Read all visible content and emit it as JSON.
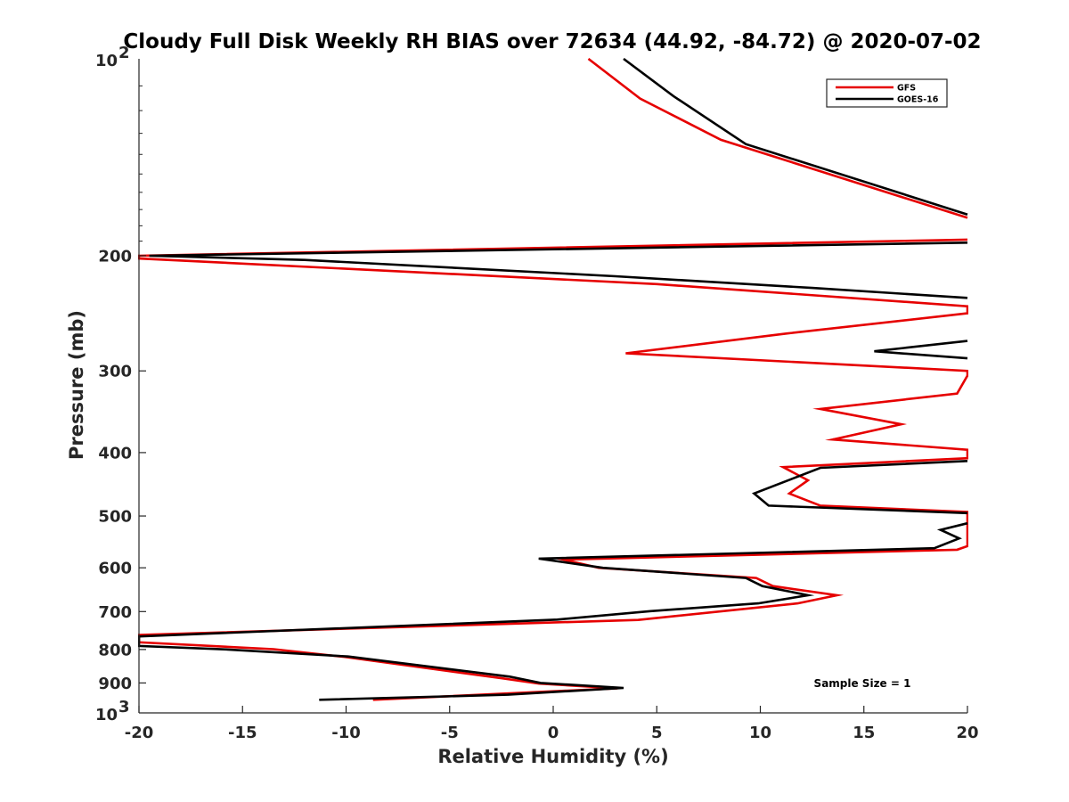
{
  "chart_data": {
    "type": "line",
    "title": "Cloudy Full Disk Weekly RH BIAS over 72634 (44.92, -84.72) @ 2020-07-02",
    "xlabel": "Relative Humidity (%)",
    "ylabel": "Pressure (mb)",
    "xlim": [
      -20,
      20
    ],
    "ylim": [
      100,
      1000
    ],
    "y_scale": "log",
    "y_reversed": true,
    "grid": false,
    "legend_position": "top-right",
    "annotation": "Sample Size = 1",
    "x_ticks": [
      {
        "value": -20,
        "label": "-20"
      },
      {
        "value": -15,
        "label": "-15"
      },
      {
        "value": -10,
        "label": "-10"
      },
      {
        "value": -5,
        "label": "-5"
      },
      {
        "value": 0,
        "label": "0"
      },
      {
        "value": 5,
        "label": "5"
      },
      {
        "value": 10,
        "label": "10"
      },
      {
        "value": 15,
        "label": "15"
      },
      {
        "value": 20,
        "label": "20"
      }
    ],
    "y_ticks": [
      {
        "value": 200,
        "label": "200"
      },
      {
        "value": 300,
        "label": "300"
      },
      {
        "value": 400,
        "label": "400"
      },
      {
        "value": 500,
        "label": "500"
      },
      {
        "value": 600,
        "label": "600"
      },
      {
        "value": 700,
        "label": "700"
      },
      {
        "value": 800,
        "label": "800"
      },
      {
        "value": 900,
        "label": "900"
      }
    ],
    "y_top_label": {
      "base": "10",
      "exp": "2"
    },
    "y_bottom_label": {
      "base": "10",
      "exp": "3"
    },
    "series": [
      {
        "name": "GFS",
        "color": "#e60000",
        "segments": [
          [
            [
              1.7,
              100
            ],
            [
              4.2,
              115
            ],
            [
              8.1,
              133
            ],
            [
              20,
              175
            ]
          ],
          [
            [
              20,
              189
            ],
            [
              -20,
              200
            ],
            [
              -20,
              202
            ],
            [
              5,
              221
            ],
            [
              20,
              239
            ],
            [
              20,
              245
            ],
            [
              11.3,
              263
            ],
            [
              3.5,
              282
            ],
            [
              20,
              300
            ],
            [
              20,
              305
            ],
            [
              19.5,
              325
            ],
            [
              12.9,
              343
            ],
            [
              16.8,
              362
            ],
            [
              13.5,
              382
            ],
            [
              20,
              396
            ],
            [
              20,
              408
            ],
            [
              11.1,
              421
            ],
            [
              12.3,
              441
            ],
            [
              11.4,
              462
            ],
            [
              12.9,
              482
            ],
            [
              20,
              493
            ],
            [
              20,
              556
            ],
            [
              19.5,
              563
            ],
            [
              0.5,
              583
            ],
            [
              2.2,
              600
            ],
            [
              9.8,
              622
            ],
            [
              10.6,
              640
            ],
            [
              13.7,
              661
            ],
            [
              11.8,
              680
            ],
            [
              4.1,
              721
            ],
            [
              -20,
              760
            ],
            [
              -20,
              780
            ],
            [
              -13.5,
              799
            ],
            [
              -10.1,
              821
            ],
            [
              -2.5,
              885
            ],
            [
              -0.7,
              902
            ],
            [
              3.1,
              917
            ],
            [
              -8.7,
              955
            ]
          ]
        ]
      },
      {
        "name": "GOES-16",
        "color": "#000000",
        "segments": [
          [
            [
              3.4,
              100
            ],
            [
              5.8,
              114
            ],
            [
              9.3,
              135
            ],
            [
              20,
              173
            ]
          ],
          [
            [
              20,
              191
            ],
            [
              -19.5,
              200
            ],
            [
              -12,
              203
            ],
            [
              3,
              215
            ],
            [
              12.5,
              224
            ],
            [
              20,
              232
            ]
          ],
          [
            [
              20,
              270
            ],
            [
              15.5,
              280
            ],
            [
              20,
              287
            ]
          ],
          [
            [
              20,
              412
            ],
            [
              12.9,
              422
            ],
            [
              9.7,
              462
            ],
            [
              10.4,
              482
            ],
            [
              20,
              495
            ]
          ],
          [
            [
              20,
              513
            ],
            [
              18.7,
              525
            ],
            [
              19.6,
              541
            ],
            [
              18.4,
              560
            ],
            [
              -0.7,
              581
            ],
            [
              2.4,
              600
            ],
            [
              9.3,
              622
            ],
            [
              10.1,
              640
            ],
            [
              12.3,
              661
            ],
            [
              9.9,
              680
            ],
            [
              4.7,
              699
            ],
            [
              0.2,
              720
            ],
            [
              -20,
              764
            ],
            [
              -20,
              790
            ],
            [
              -15.7,
              800
            ],
            [
              -9.9,
              820
            ],
            [
              -2.1,
              880
            ],
            [
              -0.6,
              900
            ],
            [
              3.4,
              916
            ],
            [
              -2.2,
              938
            ],
            [
              -11.3,
              955
            ]
          ]
        ]
      }
    ]
  }
}
